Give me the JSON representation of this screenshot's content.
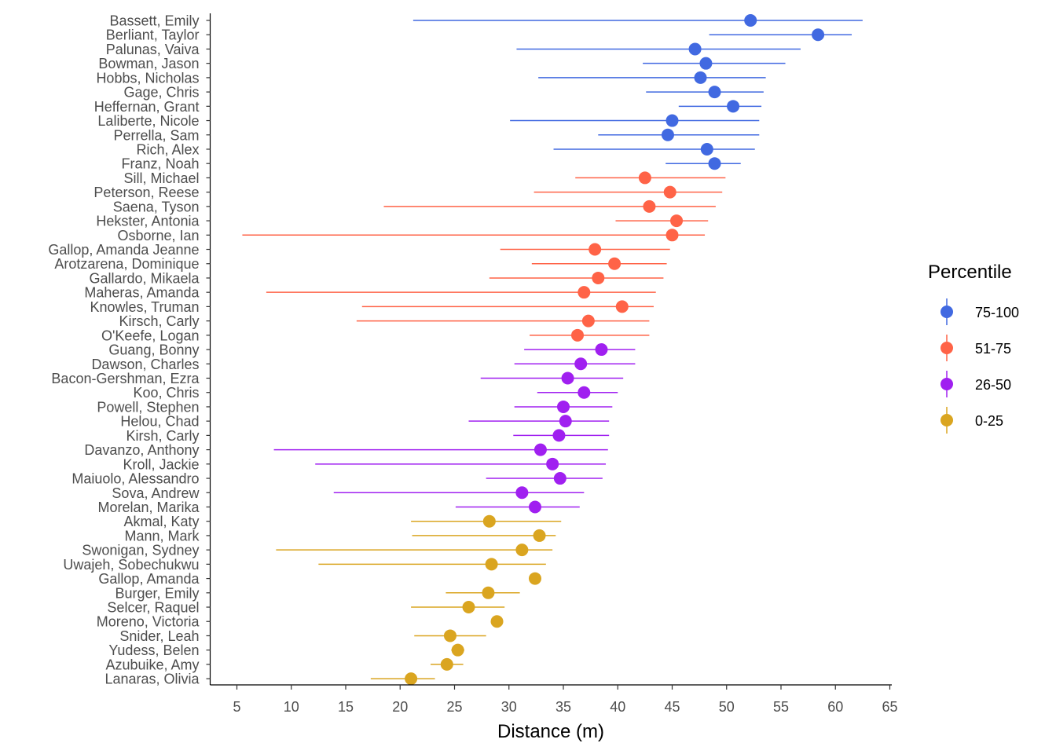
{
  "chart_data": {
    "type": "scatter",
    "subtype": "point-range",
    "xlabel": "Distance (m)",
    "ylabel": "",
    "xlim": [
      2.5,
      65
    ],
    "xticks": [
      5,
      10,
      15,
      20,
      25,
      30,
      35,
      40,
      45,
      50,
      55,
      60,
      65
    ],
    "grid": false,
    "legend": {
      "title": "Percentile",
      "position": "right",
      "entries": [
        {
          "label": "75-100",
          "color": "#4169E1"
        },
        {
          "label": "51-75",
          "color": "#FF6347"
        },
        {
          "label": "26-50",
          "color": "#A020F0"
        },
        {
          "label": "0-25",
          "color": "#DAA520"
        }
      ]
    },
    "series": [
      {
        "name": "75-100",
        "color": "#4169E1",
        "points": [
          {
            "label": "Bassett, Emily",
            "value": 52.2,
            "low": 21.2,
            "high": 62.5
          },
          {
            "label": "Berliant, Taylor",
            "value": 58.4,
            "low": 48.4,
            "high": 61.5
          },
          {
            "label": "Palunas, Vaiva",
            "value": 47.1,
            "low": 30.7,
            "high": 56.8
          },
          {
            "label": "Bowman, Jason",
            "value": 48.1,
            "low": 42.3,
            "high": 55.4
          },
          {
            "label": "Hobbs, Nicholas",
            "value": 47.6,
            "low": 32.7,
            "high": 53.6
          },
          {
            "label": "Gage, Chris",
            "value": 48.9,
            "low": 42.6,
            "high": 53.4
          },
          {
            "label": "Heffernan, Grant",
            "value": 50.6,
            "low": 45.6,
            "high": 53.2
          },
          {
            "label": "Laliberte, Nicole",
            "value": 45.0,
            "low": 30.1,
            "high": 53.0
          },
          {
            "label": "Perrella, Sam",
            "value": 44.6,
            "low": 38.2,
            "high": 53.0
          },
          {
            "label": "Rich, Alex",
            "value": 48.2,
            "low": 34.1,
            "high": 52.6
          },
          {
            "label": "Franz, Noah",
            "value": 48.9,
            "low": 44.4,
            "high": 51.3
          }
        ]
      },
      {
        "name": "51-75",
        "color": "#FF6347",
        "points": [
          {
            "label": "Sill, Michael",
            "value": 42.5,
            "low": 36.1,
            "high": 49.9
          },
          {
            "label": "Peterson, Reese",
            "value": 44.8,
            "low": 32.3,
            "high": 49.6
          },
          {
            "label": "Saena, Tyson",
            "value": 42.9,
            "low": 18.5,
            "high": 49.0
          },
          {
            "label": "Hekster, Antonia",
            "value": 45.4,
            "low": 39.8,
            "high": 48.3
          },
          {
            "label": "Osborne, Ian",
            "value": 45.0,
            "low": 5.5,
            "high": 48.0
          },
          {
            "label": "Gallop, Amanda Jeanne",
            "value": 37.9,
            "low": 29.2,
            "high": 44.8
          },
          {
            "label": "Arotzarena, Dominique",
            "value": 39.7,
            "low": 32.1,
            "high": 44.5
          },
          {
            "label": "Gallardo, Mikaela",
            "value": 38.2,
            "low": 28.2,
            "high": 44.2
          },
          {
            "label": "Maheras, Amanda",
            "value": 36.9,
            "low": 7.7,
            "high": 43.5
          },
          {
            "label": "Knowles, Truman",
            "value": 40.4,
            "low": 16.5,
            "high": 43.3
          },
          {
            "label": "Kirsch, Carly",
            "value": 37.3,
            "low": 16.0,
            "high": 42.9
          },
          {
            "label": "O'Keefe, Logan",
            "value": 36.3,
            "low": 31.9,
            "high": 42.9
          }
        ]
      },
      {
        "name": "26-50",
        "color": "#A020F0",
        "points": [
          {
            "label": "Guang, Bonny",
            "value": 38.5,
            "low": 31.4,
            "high": 41.6
          },
          {
            "label": "Dawson, Charles",
            "value": 36.6,
            "low": 30.5,
            "high": 41.6
          },
          {
            "label": "Bacon-Gershman, Ezra",
            "value": 35.4,
            "low": 27.4,
            "high": 40.5
          },
          {
            "label": "Koo, Chris",
            "value": 36.9,
            "low": 32.6,
            "high": 40.0
          },
          {
            "label": "Powell, Stephen",
            "value": 35.0,
            "low": 30.5,
            "high": 39.5
          },
          {
            "label": "Helou, Chad",
            "value": 35.2,
            "low": 26.3,
            "high": 39.2
          },
          {
            "label": "Kirsh, Carly",
            "value": 34.6,
            "low": 30.4,
            "high": 39.2
          },
          {
            "label": "Davanzo, Anthony",
            "value": 32.9,
            "low": 8.4,
            "high": 39.1
          },
          {
            "label": "Kroll, Jackie",
            "value": 34.0,
            "low": 12.2,
            "high": 38.9
          },
          {
            "label": "Maiuolo, Alessandro",
            "value": 34.7,
            "low": 27.9,
            "high": 38.6
          },
          {
            "label": "Sova, Andrew",
            "value": 31.2,
            "low": 13.9,
            "high": 36.9
          },
          {
            "label": "Morelan, Marika",
            "value": 32.4,
            "low": 25.1,
            "high": 36.5
          }
        ]
      },
      {
        "name": "0-25",
        "color": "#DAA520",
        "points": [
          {
            "label": "Akmal, Katy",
            "value": 28.2,
            "low": 21.0,
            "high": 34.8
          },
          {
            "label": "Mann, Mark",
            "value": 32.8,
            "low": 21.1,
            "high": 34.3
          },
          {
            "label": "Swonigan, Sydney",
            "value": 31.2,
            "low": 8.6,
            "high": 34.0
          },
          {
            "label": "Uwajeh, Sobechukwu",
            "value": 28.4,
            "low": 12.5,
            "high": 33.4
          },
          {
            "label": "Gallop, Amanda",
            "value": 32.4,
            "low": 32.4,
            "high": 32.4
          },
          {
            "label": "Burger, Emily",
            "value": 28.1,
            "low": 24.2,
            "high": 31.0
          },
          {
            "label": "Selcer, Raquel",
            "value": 26.3,
            "low": 21.0,
            "high": 29.6
          },
          {
            "label": "Moreno, Victoria",
            "value": 28.9,
            "low": 28.9,
            "high": 28.9
          },
          {
            "label": "Snider, Leah",
            "value": 24.6,
            "low": 21.3,
            "high": 27.9
          },
          {
            "label": "Yudess, Belen",
            "value": 25.3,
            "low": 24.7,
            "high": 25.9
          },
          {
            "label": "Azubuike, Amy",
            "value": 24.3,
            "low": 22.8,
            "high": 25.8
          },
          {
            "label": "Lanaras, Olivia",
            "value": 21.0,
            "low": 17.3,
            "high": 23.2
          }
        ]
      }
    ]
  }
}
